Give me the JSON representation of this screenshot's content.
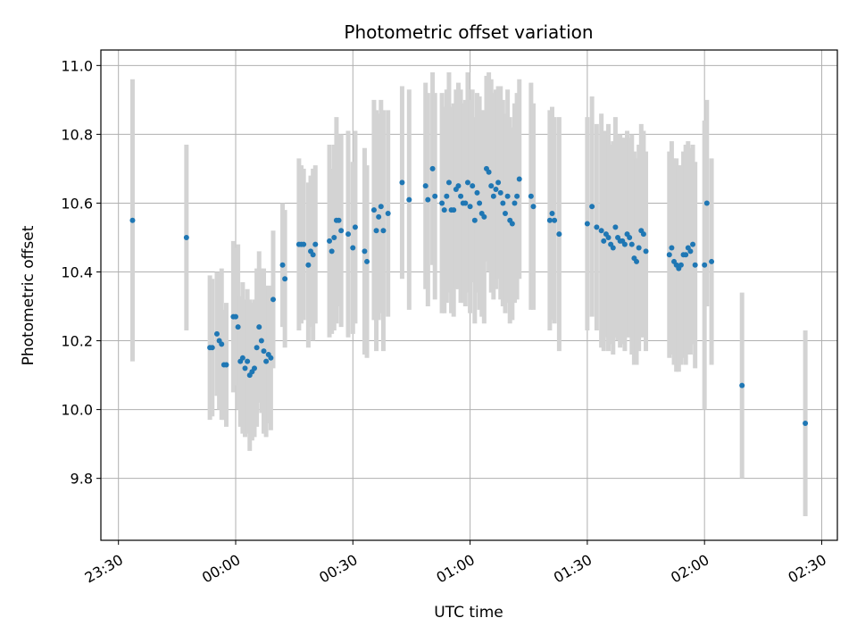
{
  "chart_data": {
    "type": "scatter",
    "title": "Photometric offset variation",
    "xlabel": "UTC time",
    "ylabel": "Photometric offset",
    "x_unit": "UTC clock time (hours after 00:00; negative = before midnight)",
    "xlim": [
      -0.575,
      2.5667
    ],
    "ylim": [
      9.62,
      11.045
    ],
    "x_ticks": [
      -0.5,
      0,
      0.5,
      1,
      1.5,
      2,
      2.5
    ],
    "x_tick_labels": [
      "23:30",
      "00:00",
      "00:30",
      "01:00",
      "01:30",
      "02:00",
      "02:30"
    ],
    "y_ticks": [
      9.8,
      10.0,
      10.2,
      10.4,
      10.6,
      10.8,
      11.0
    ],
    "y_tick_labels": [
      "9.8",
      "10.0",
      "10.2",
      "10.4",
      "10.6",
      "10.8",
      "11.0"
    ],
    "grid": true,
    "colors": {
      "points": "#1f77b4",
      "error_bars": "#d3d3d3",
      "grid": "#b0b0b0"
    },
    "points": [
      [
        -0.44,
        10.55,
        0.41
      ],
      [
        -0.21,
        10.5,
        0.27
      ],
      [
        -0.11,
        10.18,
        0.21
      ],
      [
        -0.1,
        10.18,
        0.2
      ],
      [
        -0.08,
        10.22,
        0.18
      ],
      [
        -0.07,
        10.2,
        0.2
      ],
      [
        -0.06,
        10.19,
        0.22
      ],
      [
        -0.05,
        10.13,
        0.16
      ],
      [
        -0.04,
        10.13,
        0.18
      ],
      [
        -0.01,
        10.27,
        0.22
      ],
      [
        0.0,
        10.27,
        0.2
      ],
      [
        0.01,
        10.24,
        0.24
      ],
      [
        0.02,
        10.14,
        0.19
      ],
      [
        0.03,
        10.15,
        0.22
      ],
      [
        0.04,
        10.12,
        0.2
      ],
      [
        0.05,
        10.14,
        0.21
      ],
      [
        0.06,
        10.1,
        0.22
      ],
      [
        0.07,
        10.11,
        0.2
      ],
      [
        0.08,
        10.12,
        0.2
      ],
      [
        0.09,
        10.18,
        0.23
      ],
      [
        0.1,
        10.24,
        0.22
      ],
      [
        0.11,
        10.2,
        0.21
      ],
      [
        0.12,
        10.17,
        0.24
      ],
      [
        0.13,
        10.14,
        0.22
      ],
      [
        0.14,
        10.16,
        0.2
      ],
      [
        0.15,
        10.15,
        0.21
      ],
      [
        0.16,
        10.32,
        0.2
      ],
      [
        0.2,
        10.42,
        0.18
      ],
      [
        0.21,
        10.38,
        0.2
      ],
      [
        0.27,
        10.48,
        0.25
      ],
      [
        0.28,
        10.48,
        0.23
      ],
      [
        0.29,
        10.48,
        0.22
      ],
      [
        0.31,
        10.42,
        0.24
      ],
      [
        0.32,
        10.46,
        0.22
      ],
      [
        0.33,
        10.45,
        0.25
      ],
      [
        0.34,
        10.48,
        0.23
      ],
      [
        0.4,
        10.49,
        0.28
      ],
      [
        0.41,
        10.46,
        0.24
      ],
      [
        0.42,
        10.5,
        0.27
      ],
      [
        0.43,
        10.55,
        0.3
      ],
      [
        0.44,
        10.55,
        0.25
      ],
      [
        0.45,
        10.52,
        0.28
      ],
      [
        0.48,
        10.51,
        0.3
      ],
      [
        0.5,
        10.47,
        0.25
      ],
      [
        0.51,
        10.53,
        0.28
      ],
      [
        0.55,
        10.46,
        0.3
      ],
      [
        0.56,
        10.43,
        0.28
      ],
      [
        0.59,
        10.58,
        0.32
      ],
      [
        0.6,
        10.52,
        0.35
      ],
      [
        0.61,
        10.56,
        0.3
      ],
      [
        0.62,
        10.59,
        0.31
      ],
      [
        0.63,
        10.52,
        0.35
      ],
      [
        0.65,
        10.57,
        0.3
      ],
      [
        0.71,
        10.66,
        0.28
      ],
      [
        0.74,
        10.61,
        0.32
      ],
      [
        0.81,
        10.65,
        0.3
      ],
      [
        0.82,
        10.61,
        0.31
      ],
      [
        0.84,
        10.7,
        0.28
      ],
      [
        0.85,
        10.62,
        0.3
      ],
      [
        0.88,
        10.6,
        0.32
      ],
      [
        0.89,
        10.58,
        0.3
      ],
      [
        0.9,
        10.62,
        0.31
      ],
      [
        0.91,
        10.66,
        0.32
      ],
      [
        0.92,
        10.58,
        0.3
      ],
      [
        0.93,
        10.58,
        0.31
      ],
      [
        0.94,
        10.64,
        0.29
      ],
      [
        0.95,
        10.65,
        0.3
      ],
      [
        0.96,
        10.62,
        0.31
      ],
      [
        0.97,
        10.6,
        0.29
      ],
      [
        0.98,
        10.6,
        0.3
      ],
      [
        0.99,
        10.66,
        0.32
      ],
      [
        1.0,
        10.59,
        0.31
      ],
      [
        1.01,
        10.65,
        0.28
      ],
      [
        1.02,
        10.55,
        0.3
      ],
      [
        1.03,
        10.63,
        0.29
      ],
      [
        1.04,
        10.6,
        0.31
      ],
      [
        1.05,
        10.57,
        0.3
      ],
      [
        1.06,
        10.56,
        0.31
      ],
      [
        1.07,
        10.7,
        0.27
      ],
      [
        1.08,
        10.69,
        0.29
      ],
      [
        1.09,
        10.65,
        0.31
      ],
      [
        1.1,
        10.62,
        0.3
      ],
      [
        1.11,
        10.64,
        0.29
      ],
      [
        1.12,
        10.66,
        0.28
      ],
      [
        1.13,
        10.63,
        0.31
      ],
      [
        1.14,
        10.6,
        0.3
      ],
      [
        1.15,
        10.57,
        0.29
      ],
      [
        1.16,
        10.62,
        0.31
      ],
      [
        1.17,
        10.55,
        0.3
      ],
      [
        1.18,
        10.54,
        0.28
      ],
      [
        1.19,
        10.6,
        0.29
      ],
      [
        1.2,
        10.62,
        0.3
      ],
      [
        1.21,
        10.67,
        0.29
      ],
      [
        1.26,
        10.62,
        0.33
      ],
      [
        1.27,
        10.59,
        0.3
      ],
      [
        1.34,
        10.55,
        0.32
      ],
      [
        1.35,
        10.57,
        0.31
      ],
      [
        1.36,
        10.55,
        0.3
      ],
      [
        1.38,
        10.51,
        0.34
      ],
      [
        1.5,
        10.54,
        0.31
      ],
      [
        1.52,
        10.59,
        0.32
      ],
      [
        1.54,
        10.53,
        0.3
      ],
      [
        1.56,
        10.52,
        0.34
      ],
      [
        1.57,
        10.49,
        0.32
      ],
      [
        1.58,
        10.51,
        0.3
      ],
      [
        1.59,
        10.5,
        0.33
      ],
      [
        1.6,
        10.48,
        0.29
      ],
      [
        1.61,
        10.47,
        0.31
      ],
      [
        1.62,
        10.53,
        0.32
      ],
      [
        1.63,
        10.5,
        0.3
      ],
      [
        1.64,
        10.49,
        0.31
      ],
      [
        1.65,
        10.49,
        0.3
      ],
      [
        1.66,
        10.48,
        0.31
      ],
      [
        1.67,
        10.51,
        0.3
      ],
      [
        1.68,
        10.5,
        0.29
      ],
      [
        1.69,
        10.48,
        0.32
      ],
      [
        1.7,
        10.44,
        0.31
      ],
      [
        1.71,
        10.43,
        0.3
      ],
      [
        1.72,
        10.47,
        0.3
      ],
      [
        1.73,
        10.52,
        0.31
      ],
      [
        1.74,
        10.51,
        0.3
      ],
      [
        1.75,
        10.46,
        0.29
      ],
      [
        1.85,
        10.45,
        0.3
      ],
      [
        1.86,
        10.47,
        0.31
      ],
      [
        1.87,
        10.43,
        0.3
      ],
      [
        1.88,
        10.42,
        0.31
      ],
      [
        1.89,
        10.41,
        0.3
      ],
      [
        1.9,
        10.42,
        0.29
      ],
      [
        1.91,
        10.45,
        0.3
      ],
      [
        1.92,
        10.45,
        0.32
      ],
      [
        1.93,
        10.47,
        0.31
      ],
      [
        1.94,
        10.46,
        0.3
      ],
      [
        1.95,
        10.48,
        0.29
      ],
      [
        1.96,
        10.42,
        0.3
      ],
      [
        2.0,
        10.42,
        0.42
      ],
      [
        2.01,
        10.6,
        0.3
      ],
      [
        2.03,
        10.43,
        0.3
      ],
      [
        2.16,
        10.07,
        0.27
      ],
      [
        2.43,
        9.96,
        0.27
      ]
    ]
  }
}
